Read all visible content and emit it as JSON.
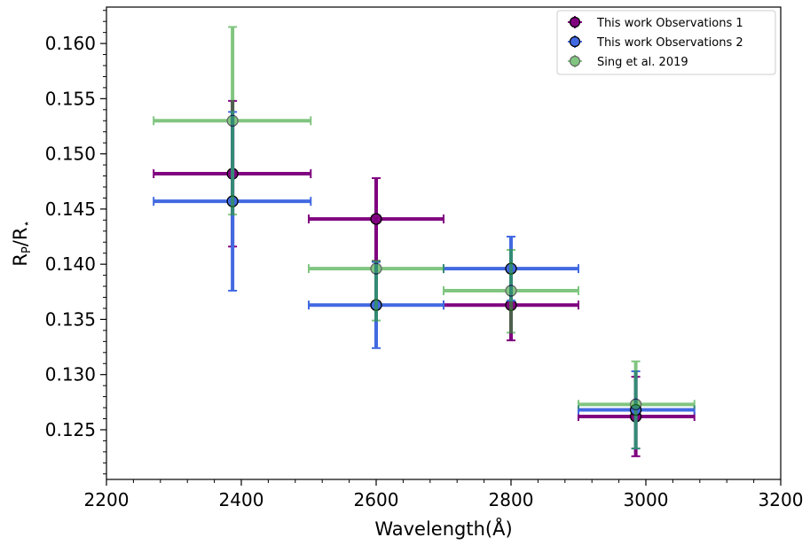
{
  "chart_data": {
    "type": "scatter",
    "title": "",
    "xlabel": "Wavelength(Å)",
    "ylabel_main": "R",
    "ylabel_sub1": "P",
    "ylabel_mid": "/R",
    "ylabel_sub2": "⋆",
    "xlim": [
      2200,
      3200
    ],
    "ylim": [
      0.1205,
      0.1633
    ],
    "xticks": [
      2200,
      2400,
      2600,
      2800,
      3000,
      3200
    ],
    "xtick_labels": [
      "2200",
      "2400",
      "2600",
      "2800",
      "3000",
      "3200"
    ],
    "yticks": [
      0.125,
      0.13,
      0.135,
      0.14,
      0.145,
      0.15,
      0.155,
      0.16
    ],
    "ytick_labels": [
      "0.125",
      "0.130",
      "0.135",
      "0.140",
      "0.145",
      "0.150",
      "0.155",
      "0.160"
    ],
    "grid": false,
    "legend_position": "top-right",
    "series": [
      {
        "name": "This work Observations 1",
        "color": "#800080",
        "points": [
          {
            "x": 2387,
            "y": 0.1482,
            "xlo": 2270,
            "xhi": 2503,
            "ylo": 0.1416,
            "yhi": 0.1548
          },
          {
            "x": 2600,
            "y": 0.1441,
            "xlo": 2500,
            "xhi": 2700,
            "ylo": 0.1403,
            "yhi": 0.1478
          },
          {
            "x": 2800,
            "y": 0.1363,
            "xlo": 2700,
            "xhi": 2900,
            "ylo": 0.1331,
            "yhi": 0.1396
          },
          {
            "x": 2985,
            "y": 0.1262,
            "xlo": 2900,
            "xhi": 3072,
            "ylo": 0.1226,
            "yhi": 0.1298
          }
        ]
      },
      {
        "name": "This work Observations 2",
        "color": "#4169e1",
        "points": [
          {
            "x": 2387,
            "y": 0.1457,
            "xlo": 2270,
            "xhi": 2503,
            "ylo": 0.1376,
            "yhi": 0.1538
          },
          {
            "x": 2600,
            "y": 0.1363,
            "xlo": 2500,
            "xhi": 2700,
            "ylo": 0.1324,
            "yhi": 0.1402
          },
          {
            "x": 2800,
            "y": 0.1396,
            "xlo": 2700,
            "xhi": 2900,
            "ylo": 0.1367,
            "yhi": 0.1425
          },
          {
            "x": 2985,
            "y": 0.1268,
            "xlo": 2900,
            "xhi": 3072,
            "ylo": 0.1233,
            "yhi": 0.1303
          }
        ]
      },
      {
        "name": "Sing et al. 2019",
        "color": "#2ca02c",
        "alpha": 0.6,
        "points": [
          {
            "x": 2387,
            "y": 0.153,
            "xlo": 2270,
            "xhi": 2503,
            "ylo": 0.1445,
            "yhi": 0.1615
          },
          {
            "x": 2600,
            "y": 0.1396,
            "xlo": 2500,
            "xhi": 2700,
            "ylo": 0.1349,
            "yhi": 0.1403
          },
          {
            "x": 2800,
            "y": 0.1376,
            "xlo": 2700,
            "xhi": 2900,
            "ylo": 0.1338,
            "yhi": 0.1413
          },
          {
            "x": 2985,
            "y": 0.1273,
            "xlo": 2900,
            "xhi": 3072,
            "ylo": 0.1233,
            "yhi": 0.1312
          }
        ]
      }
    ]
  }
}
